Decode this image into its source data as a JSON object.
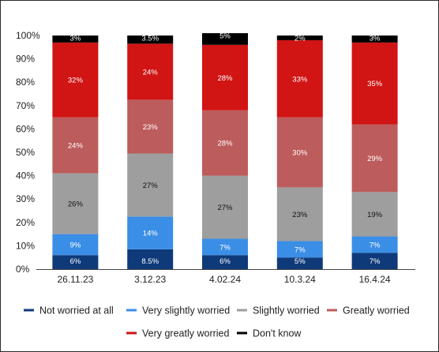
{
  "chart_data": {
    "type": "bar",
    "stacked": true,
    "categories": [
      "26.11.23",
      "3.12.23",
      "4.02.24",
      "10.3.24",
      "16.4.24"
    ],
    "ylim": [
      0,
      100
    ],
    "yticks": [
      "0%",
      "10%",
      "20%",
      "30%",
      "40%",
      "50%",
      "60%",
      "70%",
      "80%",
      "90%",
      "100%"
    ],
    "grid": false,
    "legend_position": "bottom",
    "series": [
      {
        "name": "Not worried at all",
        "color": "#0f3a7a",
        "label_color": "#ffffff",
        "values": [
          6,
          8.5,
          6,
          5,
          7
        ],
        "labels": [
          "6%",
          "8.5%",
          "6%",
          "5%",
          "7%"
        ]
      },
      {
        "name": "Very slightly worried",
        "color": "#3b8ee6",
        "label_color": "#ffffff",
        "values": [
          9,
          14,
          7,
          7,
          7
        ],
        "labels": [
          "9%",
          "14%",
          "7%",
          "7%",
          "7%"
        ]
      },
      {
        "name": "Slightly worried",
        "color": "#9e9e9e",
        "label_color": "#111111",
        "values": [
          26,
          27,
          27,
          23,
          19
        ],
        "labels": [
          "26%",
          "27%",
          "27%",
          "23%",
          "19%"
        ]
      },
      {
        "name": "Greatly worried",
        "color": "#bd5c5c",
        "label_color": "#ffffff",
        "values": [
          24,
          23,
          28,
          30,
          29
        ],
        "labels": [
          "24%",
          "23%",
          "28%",
          "30%",
          "29%"
        ]
      },
      {
        "name": "Very greatly worried",
        "color": "#d11414",
        "label_color": "#ffffff",
        "values": [
          32,
          24,
          28,
          33,
          35
        ],
        "labels": [
          "32%",
          "24%",
          "28%",
          "33%",
          "35%"
        ]
      },
      {
        "name": "Don't know",
        "color": "#000000",
        "label_color": "#ffffff",
        "values": [
          3,
          3.5,
          5,
          2,
          3
        ],
        "labels": [
          "3%",
          "3.5%",
          "5%",
          "2%",
          "3%"
        ]
      }
    ]
  }
}
